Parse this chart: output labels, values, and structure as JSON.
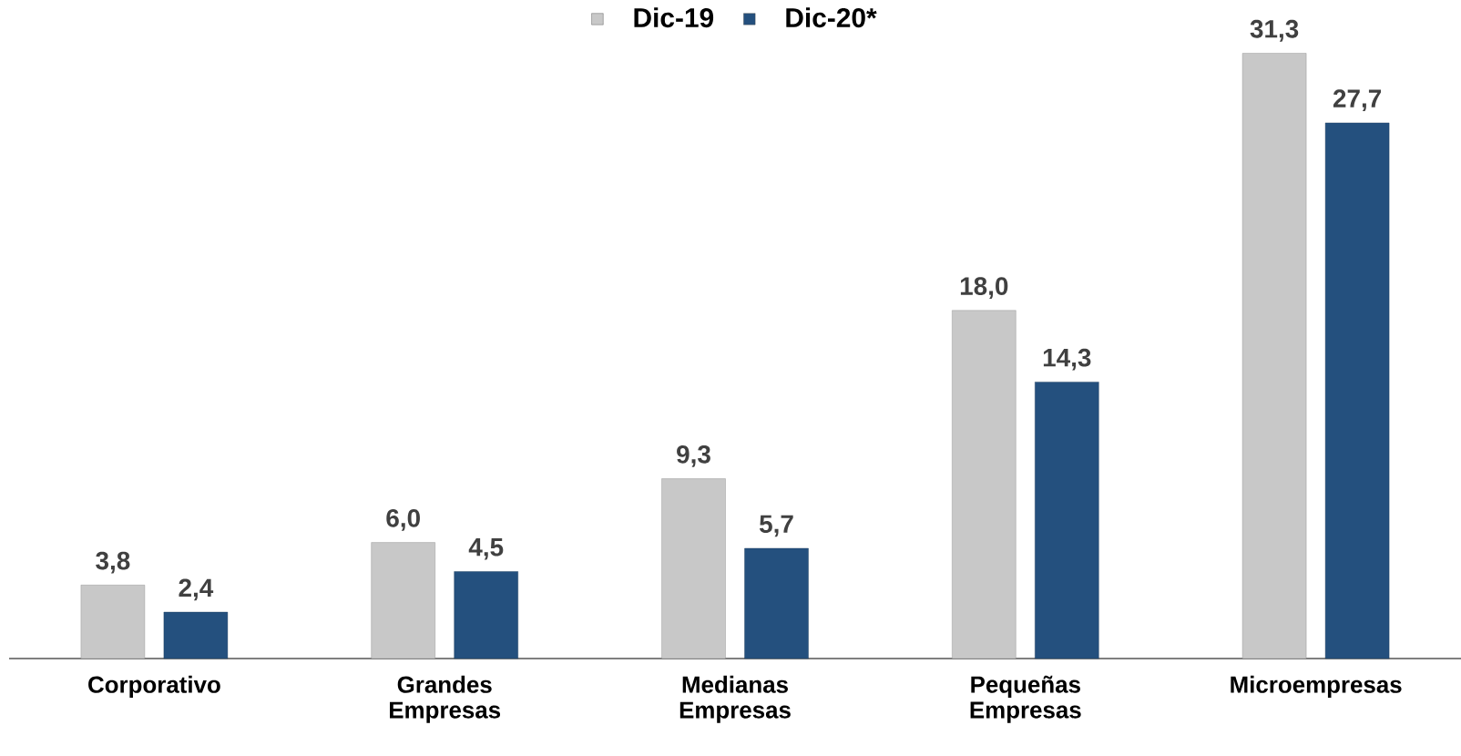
{
  "chart_data": {
    "type": "bar",
    "categories": [
      "Corporativo",
      "Grandes Empresas",
      "Medianas Empresas",
      "Pequeñas Empresas",
      "Microempresas"
    ],
    "series": [
      {
        "name": "Dic-19",
        "color": "#c8c8c8",
        "values": [
          3.8,
          6.0,
          9.3,
          18.0,
          31.3
        ],
        "value_labels": [
          "3,8",
          "6,0",
          "9,3",
          "18,0",
          "31,3"
        ]
      },
      {
        "name": "Dic-20*",
        "color": "#24507e",
        "values": [
          2.4,
          4.5,
          5.7,
          14.3,
          27.7
        ],
        "value_labels": [
          "2,4",
          "4,5",
          "5,7",
          "14,3",
          "27,7"
        ]
      }
    ],
    "legend": "top"
  }
}
